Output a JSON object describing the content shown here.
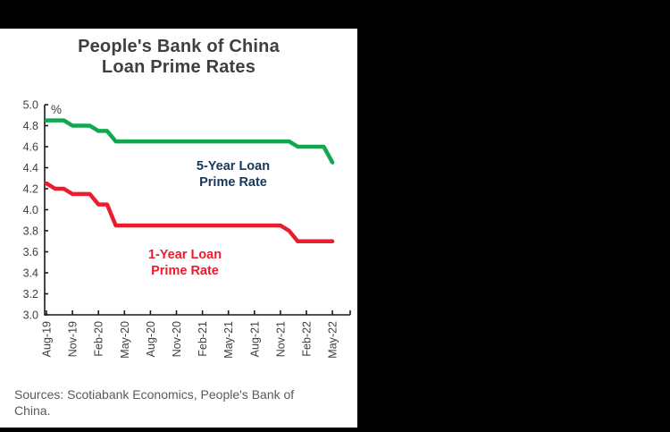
{
  "window": {
    "background_color": "#000000",
    "panel_color": "#ffffff"
  },
  "title": {
    "lines": [
      "People's Bank of China",
      "Loan Prime Rates"
    ]
  },
  "source_note": {
    "lines": [
      "Sources: Scotiabank Economics, People's Bank of",
      "China."
    ]
  },
  "chart_data": {
    "type": "line",
    "title": "People's Bank of China Loan Prime Rates",
    "unit_label": "%",
    "grid": false,
    "legend_position": "inline-annotations",
    "axis_color": "#1a1a1a",
    "tick_label_color": "#3f3f3f",
    "ylim": [
      3.0,
      5.0
    ],
    "y_tick_step": 0.2,
    "y_tick_labels": [
      "5.0",
      "4.8",
      "4.6",
      "4.4",
      "4.2",
      "4.0",
      "3.8",
      "3.6",
      "3.4",
      "3.2",
      "3.0"
    ],
    "x": [
      "Aug-19",
      "Sep-19",
      "Oct-19",
      "Nov-19",
      "Dec-19",
      "Jan-20",
      "Feb-20",
      "Mar-20",
      "Apr-20",
      "May-20",
      "Jun-20",
      "Jul-20",
      "Aug-20",
      "Sep-20",
      "Oct-20",
      "Nov-20",
      "Dec-20",
      "Jan-21",
      "Feb-21",
      "Mar-21",
      "Apr-21",
      "May-21",
      "Jun-21",
      "Jul-21",
      "Aug-21",
      "Sep-21",
      "Oct-21",
      "Nov-21",
      "Dec-21",
      "Jan-22",
      "Feb-22",
      "Mar-22",
      "Apr-22",
      "May-22"
    ],
    "x_tick_labels": [
      "Aug-19",
      "Nov-19",
      "Feb-20",
      "May-20",
      "Aug-20",
      "Nov-20",
      "Feb-21",
      "May-21",
      "Aug-21",
      "Nov-21",
      "Feb-22",
      "May-22"
    ],
    "series": [
      {
        "name": "5-Year Loan Prime Rate",
        "color": "#10a84f",
        "annotation": {
          "lines": [
            "5-Year Loan",
            "Prime Rate"
          ],
          "color": "#17375d"
        },
        "values": [
          4.85,
          4.85,
          4.85,
          4.8,
          4.8,
          4.8,
          4.75,
          4.75,
          4.65,
          4.65,
          4.65,
          4.65,
          4.65,
          4.65,
          4.65,
          4.65,
          4.65,
          4.65,
          4.65,
          4.65,
          4.65,
          4.65,
          4.65,
          4.65,
          4.65,
          4.65,
          4.65,
          4.65,
          4.65,
          4.6,
          4.6,
          4.6,
          4.6,
          4.45
        ]
      },
      {
        "name": "1-Year Loan Prime Rate",
        "color": "#ea1c2d",
        "annotation": {
          "lines": [
            "1-Year Loan",
            "Prime Rate"
          ],
          "color": "#ea1c2d"
        },
        "values": [
          4.25,
          4.2,
          4.2,
          4.15,
          4.15,
          4.15,
          4.05,
          4.05,
          3.85,
          3.85,
          3.85,
          3.85,
          3.85,
          3.85,
          3.85,
          3.85,
          3.85,
          3.85,
          3.85,
          3.85,
          3.85,
          3.85,
          3.85,
          3.85,
          3.85,
          3.85,
          3.85,
          3.85,
          3.8,
          3.7,
          3.7,
          3.7,
          3.7,
          3.7
        ]
      }
    ]
  }
}
